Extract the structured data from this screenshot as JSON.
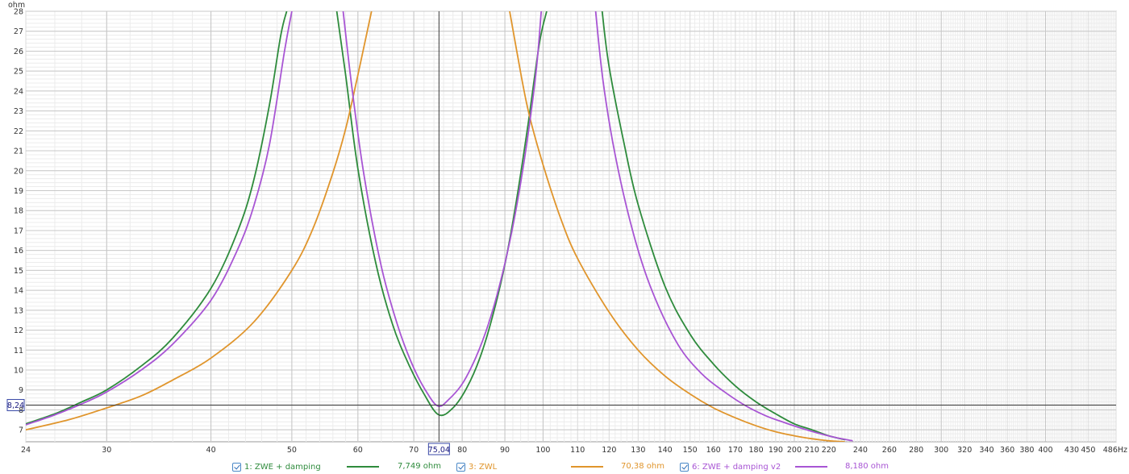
{
  "chart_data": {
    "type": "line",
    "title": "",
    "xlabel": "Hz",
    "ylabel": "ohm",
    "x_scale": "log",
    "xlim": [
      24,
      486
    ],
    "ylim": [
      6.4,
      28
    ],
    "x_ticks": [
      24,
      30,
      40,
      50,
      60,
      70,
      80,
      90,
      100,
      110,
      120,
      130,
      140,
      150,
      160,
      170,
      180,
      190,
      200,
      210,
      220,
      240,
      260,
      280,
      300,
      320,
      340,
      360,
      380,
      400,
      430,
      450,
      486
    ],
    "x_tick_labels": [
      "24",
      "30",
      "40",
      "50",
      "60",
      "70",
      "80",
      "90",
      "100",
      "110",
      "120",
      "130",
      "140",
      "150",
      "160",
      "170",
      "180",
      "190",
      "200",
      "210",
      "220",
      "240",
      "260",
      "280",
      "300",
      "320",
      "340",
      "360",
      "380",
      "400",
      "430",
      "450",
      "486Hz"
    ],
    "y_ticks": [
      7,
      8,
      9,
      10,
      11,
      12,
      13,
      14,
      15,
      16,
      17,
      18,
      19,
      20,
      21,
      22,
      23,
      24,
      25,
      26,
      27,
      28
    ],
    "y_tick_labels": [
      "7",
      "8",
      "9",
      "10",
      "11",
      "12",
      "13",
      "14",
      "15",
      "16",
      "17",
      "18",
      "19",
      "20",
      "21",
      "22",
      "23",
      "24",
      "25",
      "26",
      "27",
      "28"
    ],
    "y_unit_label": "ohm",
    "grid": true,
    "legend_position": "bottom",
    "cursor": {
      "x": 75.04,
      "y": 8.24,
      "x_label": "75,04",
      "y_label": "8,24"
    },
    "series": [
      {
        "name": "1: ZWE + damping",
        "value_label": "7,749 ohm",
        "color": "#2e8b3c",
        "x": [
          24,
          26,
          28,
          30,
          33,
          36,
          40,
          43,
          45,
          47,
          48.5,
          49.3,
          56.6,
          58,
          60,
          63,
          66,
          69,
          72,
          75,
          78,
          81,
          84,
          87,
          90,
          93,
          96,
          99,
          101,
          101.7,
          117.7,
          120,
          125,
          130,
          140,
          150,
          160,
          170,
          180,
          190,
          200,
          210,
          220,
          230
        ],
        "y": [
          7.3,
          7.8,
          8.4,
          9.0,
          10.2,
          11.6,
          14.1,
          16.9,
          19.5,
          23.3,
          26.8,
          28,
          28,
          24.8,
          20.1,
          15.4,
          12.3,
          10.3,
          8.8,
          7.749,
          8.1,
          9.1,
          10.6,
          12.7,
          15.3,
          18.6,
          22.4,
          26.4,
          28,
          28,
          28,
          25.2,
          21.4,
          18.3,
          14.2,
          11.8,
          10.3,
          9.2,
          8.4,
          7.8,
          7.3,
          7.0,
          6.7,
          6.5
        ]
      },
      {
        "name": "3: ZWL",
        "value_label": "70,38 ohm",
        "color": "#e0952c",
        "x": [
          24,
          27,
          30,
          33,
          36,
          40,
          45,
          50,
          53,
          56,
          58,
          60,
          61.5,
          62.3,
          91.2,
          93,
          96,
          100,
          105,
          110,
          120,
          130,
          140,
          150,
          160,
          170,
          180,
          190,
          200,
          210,
          220,
          230
        ],
        "y": [
          7.0,
          7.5,
          8.1,
          8.7,
          9.5,
          10.6,
          12.4,
          15.0,
          17.1,
          19.9,
          22.1,
          24.8,
          26.9,
          28,
          28,
          26.0,
          23.0,
          20.3,
          17.6,
          15.6,
          12.9,
          11.0,
          9.7,
          8.8,
          8.1,
          7.6,
          7.2,
          6.9,
          6.7,
          6.55,
          6.45,
          6.4
        ]
      },
      {
        "name": "6: ZWE + damping v2",
        "value_label": "8,180 ohm",
        "color": "#a855d4",
        "x": [
          24,
          26,
          28,
          30,
          33,
          36,
          40,
          43,
          45,
          47,
          49,
          50,
          57.6,
          59,
          61,
          64,
          67,
          70,
          73,
          75,
          77,
          80,
          83,
          86,
          89,
          92,
          95,
          98,
          99.5,
          115.6,
          118,
          122,
          128,
          135,
          145,
          155,
          165,
          175,
          185,
          195,
          205,
          215,
          225,
          235
        ],
        "y": [
          7.25,
          7.75,
          8.3,
          8.9,
          10.0,
          11.3,
          13.5,
          16.0,
          18.2,
          21.3,
          26.0,
          28,
          28,
          24.2,
          19.8,
          15.2,
          12.2,
          10.1,
          8.7,
          8.18,
          8.5,
          9.3,
          10.6,
          12.3,
          14.5,
          17.2,
          20.6,
          24.8,
          28,
          28,
          24.5,
          20.8,
          17.0,
          14.0,
          11.3,
          9.8,
          8.9,
          8.2,
          7.7,
          7.35,
          7.05,
          6.8,
          6.6,
          6.45
        ]
      }
    ]
  }
}
